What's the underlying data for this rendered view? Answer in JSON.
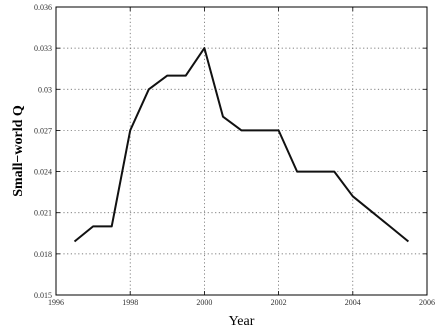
{
  "chart_data": {
    "type": "line",
    "title": "",
    "xlabel": "Year",
    "ylabel": "Small−world Q",
    "xlim": [
      1996,
      2006
    ],
    "ylim": [
      0.015,
      0.036
    ],
    "x_ticks": [
      1996,
      1998,
      2000,
      2002,
      2004,
      2006
    ],
    "x_tick_labels": [
      "1996",
      "1998",
      "2000",
      "2002",
      "2004",
      "2006"
    ],
    "y_ticks": [
      0.015,
      0.018,
      0.021,
      0.024,
      0.027,
      0.03,
      0.033,
      0.036
    ],
    "y_tick_labels": [
      "0.015",
      "0.018",
      "0.021",
      "0.024",
      "0.027",
      "0.03",
      "0.033",
      "0.036"
    ],
    "grid": true,
    "series": [
      {
        "x": [
          1996.5,
          1997,
          1997.5,
          1998,
          1998.5,
          1999,
          1999.5,
          2000,
          2000.5,
          2001,
          2001.5,
          2002,
          2002.5,
          2003,
          2003.5,
          2004,
          2004.5,
          2005,
          2005.5
        ],
        "values": [
          0.0189,
          0.02,
          0.02,
          0.027,
          0.03,
          0.031,
          0.031,
          0.033,
          0.028,
          0.027,
          0.027,
          0.027,
          0.024,
          0.024,
          0.024,
          0.0222,
          0.0211,
          0.02,
          0.0189
        ],
        "color": "#111111"
      }
    ]
  }
}
